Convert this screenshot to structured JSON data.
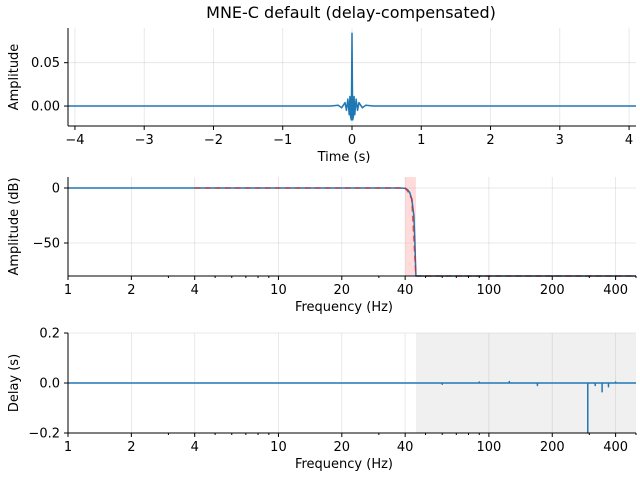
{
  "figure": {
    "title": "MNE-C default (delay-compensated)"
  },
  "colors": {
    "line": "#1f77b4",
    "ideal": "#d62728",
    "transition_band": "#ff9999",
    "stopband_shade": "#f0f0f0"
  },
  "chart_data": [
    {
      "id": "impulse",
      "type": "line",
      "title": "MNE-C default (delay-compensated)",
      "xlabel": "Time (s)",
      "ylabel": "Amplitude",
      "xlim": [
        -4.1,
        4.1
      ],
      "ylim": [
        -0.023,
        0.09
      ],
      "xscale": "linear",
      "xticks": [
        -4,
        -3,
        -2,
        -1,
        0,
        1,
        2,
        3,
        4
      ],
      "xtick_labels": [
        "−4",
        "−3",
        "−2",
        "−1",
        "0",
        "1",
        "2",
        "3",
        "4"
      ],
      "yticks": [
        0.0,
        0.05
      ],
      "ytick_labels": [
        "0.00",
        "0.05"
      ],
      "grid": true,
      "series": [
        {
          "x": [
            -4.1,
            -0.3,
            -0.2,
            -0.15,
            -0.1,
            -0.08,
            -0.06,
            -0.04,
            -0.03,
            -0.02,
            -0.01,
            -0.005,
            0.0,
            0.005,
            0.01,
            0.02,
            0.03,
            0.04,
            0.06,
            0.08,
            0.1,
            0.15,
            0.2,
            0.3,
            4.1
          ],
          "y": [
            0.0,
            0.0,
            0.001,
            -0.002,
            0.004,
            -0.005,
            0.008,
            -0.01,
            0.011,
            -0.012,
            -0.016,
            0.03,
            0.084,
            0.03,
            -0.016,
            -0.012,
            0.011,
            -0.01,
            0.008,
            -0.005,
            0.004,
            -0.002,
            0.001,
            0.0,
            0.0
          ]
        }
      ]
    },
    {
      "id": "magnitude",
      "type": "line",
      "xlabel": "Frequency (Hz)",
      "ylabel": "Amplitude (dB)",
      "xscale": "log",
      "xlim": [
        1,
        500
      ],
      "ylim": [
        -80,
        10
      ],
      "xticks": [
        1,
        2,
        4,
        10,
        20,
        40,
        100,
        200,
        400
      ],
      "xtick_labels": [
        "1",
        "2",
        "4",
        "10",
        "20",
        "40",
        "100",
        "200",
        "400"
      ],
      "yticks": [
        0,
        -50
      ],
      "ytick_labels": [
        "0",
        "−50"
      ],
      "grid": true,
      "transition_band": [
        40,
        45
      ],
      "series": [
        {
          "name": "filter",
          "x": [
            1,
            30,
            38,
            40,
            41,
            42,
            43,
            44,
            44.5,
            45,
            46,
            500
          ],
          "y": [
            0,
            0,
            0,
            -0.3,
            -1.5,
            -4,
            -10,
            -25,
            -50,
            -80,
            -80,
            -80
          ]
        },
        {
          "name": "ideal",
          "dashed": true,
          "x": [
            4,
            40,
            41.5,
            43,
            45,
            500
          ],
          "y": [
            0,
            0,
            -4,
            -10,
            -80,
            -80
          ]
        }
      ]
    },
    {
      "id": "delay",
      "type": "line",
      "xlabel": "Frequency (Hz)",
      "ylabel": "Delay (s)",
      "xscale": "log",
      "xlim": [
        1,
        500
      ],
      "ylim": [
        -0.2,
        0.2
      ],
      "xticks": [
        1,
        2,
        4,
        10,
        20,
        40,
        100,
        200,
        400
      ],
      "xtick_labels": [
        "1",
        "2",
        "4",
        "10",
        "20",
        "40",
        "100",
        "200",
        "400"
      ],
      "yticks": [
        -0.2,
        0.0,
        0.2
      ],
      "ytick_labels": [
        "−0.2",
        "0.0",
        "0.2"
      ],
      "grid": true,
      "stopband_shaded": [
        45,
        500
      ],
      "series": [
        {
          "x": [
            1,
            60,
            60,
            60,
            90,
            90,
            90,
            125,
            125,
            125,
            170,
            170,
            170,
            295,
            295,
            295,
            320,
            320,
            320,
            345,
            345,
            345,
            370,
            370,
            370,
            400,
            400,
            400,
            500
          ],
          "y": [
            0,
            0,
            -0.005,
            0,
            0,
            0.004,
            0,
            0,
            0.006,
            0,
            0,
            -0.01,
            0,
            0,
            -0.2,
            0,
            0,
            -0.01,
            0,
            0,
            -0.035,
            0,
            0,
            -0.015,
            0,
            0,
            0.004,
            0,
            0
          ]
        }
      ]
    }
  ]
}
